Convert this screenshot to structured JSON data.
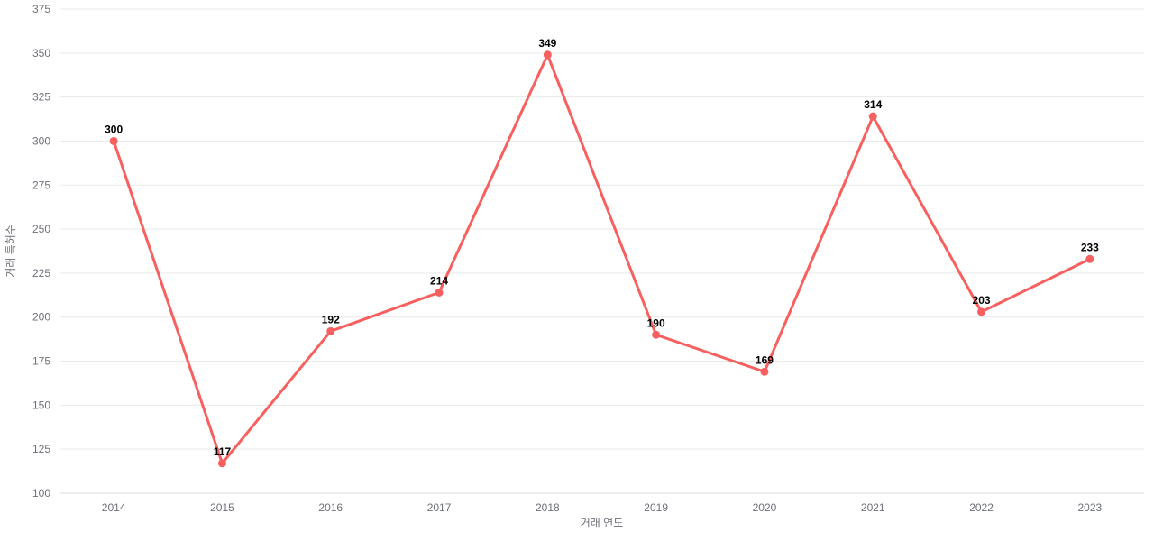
{
  "chart_data": {
    "type": "line",
    "title": "",
    "categories": [
      "2014",
      "2015",
      "2016",
      "2017",
      "2018",
      "2019",
      "2020",
      "2021",
      "2022",
      "2023"
    ],
    "values": [
      300,
      117,
      192,
      214,
      349,
      190,
      169,
      314,
      203,
      233
    ],
    "xlabel": "거래 연도",
    "ylabel": "거래 특허수",
    "ylim": [
      100,
      375
    ],
    "ytick_step": 25,
    "yticks": [
      100,
      125,
      150,
      175,
      200,
      225,
      250,
      275,
      300,
      325,
      350,
      375
    ],
    "grid": true,
    "legend_position": "none",
    "point_labels_visible": true,
    "colors": {
      "line": "#f7605e",
      "point": "#f7605e",
      "grid": "#e9e9e9",
      "axis_line": "#d4dce6",
      "tick_text": "#6e7079",
      "axis_title_text": "#6e7079",
      "value_label_text": "#000000",
      "background": "#ffffff"
    }
  }
}
